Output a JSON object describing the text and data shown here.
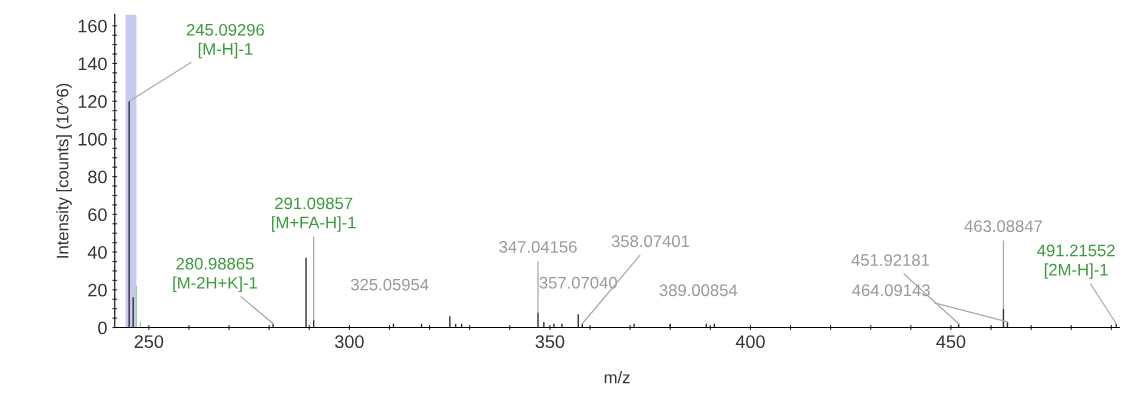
{
  "chart_data": {
    "type": "bar",
    "xlabel": "m/z",
    "ylabel": "Intensity [counts] (10^6)",
    "x": [
      245.09296,
      246.1,
      246.9,
      247.9,
      280.98865,
      289.2,
      291.09857,
      311,
      318,
      325.05954,
      326.5,
      328,
      347.04156,
      348.5,
      351,
      353,
      357.0704,
      358.07401,
      371,
      380,
      389.00854,
      391,
      451.92181,
      463.08847,
      464.09143,
      491.21552
    ],
    "values": [
      120,
      16,
      22,
      3,
      2,
      37,
      4,
      2,
      2,
      6,
      2,
      2,
      8,
      3,
      2,
      2,
      7,
      2,
      2,
      2,
      2,
      2,
      2,
      10,
      3,
      2
    ],
    "colors": [
      "#303040",
      "#303040",
      "#8fd88f",
      "#8fd88f",
      "#303040",
      "#303040",
      "#303040",
      "#303040",
      "#303040",
      "#303040",
      "#303040",
      "#303040",
      "#303040",
      "#303040",
      "#303040",
      "#303040",
      "#303040",
      "#303040",
      "#303040",
      "#303040",
      "#303040",
      "#303040",
      "#303040",
      "#303040",
      "#303040",
      "#303040"
    ],
    "xlim": [
      241.5,
      492
    ],
    "xticks": [
      250,
      {
        "value": 260,
        "label": null
      },
      {
        "value": 270,
        "label": null
      },
      {
        "value": 280,
        "label": null
      },
      {
        "value": 290,
        "label": null
      },
      300,
      {
        "value": 310,
        "label": null
      },
      {
        "value": 320,
        "label": null
      },
      {
        "value": 330,
        "label": null
      },
      {
        "value": 340,
        "label": null
      },
      350,
      {
        "value": 360,
        "label": null
      },
      {
        "value": 370,
        "label": null
      },
      {
        "value": 380,
        "label": null
      },
      {
        "value": 390,
        "label": null
      },
      400,
      {
        "value": 410,
        "label": null
      },
      {
        "value": 420,
        "label": null
      },
      {
        "value": 430,
        "label": null
      },
      {
        "value": 440,
        "label": null
      },
      450,
      {
        "value": 460,
        "label": null
      },
      {
        "value": 470,
        "label": null
      },
      {
        "value": 480,
        "label": null
      },
      {
        "value": 490,
        "label": null
      }
    ],
    "ylim": [
      0,
      166
    ],
    "yticks": [
      0,
      {
        "value": 5,
        "label": null
      },
      {
        "value": 10,
        "label": null
      },
      {
        "value": 15,
        "label": null
      },
      20,
      {
        "value": 25,
        "label": null
      },
      {
        "value": 30,
        "label": null
      },
      {
        "value": 35,
        "label": null
      },
      40,
      {
        "value": 45,
        "label": null
      },
      {
        "value": 50,
        "label": null
      },
      {
        "value": 55,
        "label": null
      },
      60,
      {
        "value": 65,
        "label": null
      },
      {
        "value": 70,
        "label": null
      },
      {
        "value": 75,
        "label": null
      },
      80,
      {
        "value": 85,
        "label": null
      },
      {
        "value": 90,
        "label": null
      },
      {
        "value": 95,
        "label": null
      },
      100,
      {
        "value": 105,
        "label": null
      },
      {
        "value": 110,
        "label": null
      },
      {
        "value": 115,
        "label": null
      },
      120,
      {
        "value": 125,
        "label": null
      },
      {
        "value": 130,
        "label": null
      },
      {
        "value": 135,
        "label": null
      },
      140,
      {
        "value": 145,
        "label": null
      },
      {
        "value": 150,
        "label": null
      },
      {
        "value": 155,
        "label": null
      },
      160
    ],
    "bands": [
      {
        "axis": "x",
        "from": 244.2,
        "to": 246.9,
        "color": "#c8c8f0"
      }
    ],
    "grid": false,
    "annotations": [
      {
        "text": "245.09296\n[M-H]-1",
        "x": 245.09296,
        "y": 120
      },
      {
        "text": "291.09857\n[M+FA-H]-1",
        "x": 291.09857,
        "y": 4
      },
      {
        "text": "280.98865\n[M-2H+K]-1",
        "x": 280.98865,
        "y": 2
      },
      {
        "text": "325.05954",
        "x": 325.05954,
        "y": 6
      },
      {
        "text": "347.04156",
        "x": 347.04156,
        "y": 8
      },
      {
        "text": "357.07040",
        "x": 357.0704,
        "y": 7
      },
      {
        "text": "358.07401",
        "x": 358.07401,
        "y": 2
      },
      {
        "text": "389.00854",
        "x": 389.00854,
        "y": 2
      },
      {
        "text": "451.92181",
        "x": 451.92181,
        "y": 2
      },
      {
        "text": "464.09143",
        "x": 464.09143,
        "y": 3
      },
      {
        "text": "463.08847",
        "x": 463.08847,
        "y": 10
      },
      {
        "text": "491.21552\n[2M-H]-1",
        "x": 491.21552,
        "y": 2
      }
    ]
  }
}
